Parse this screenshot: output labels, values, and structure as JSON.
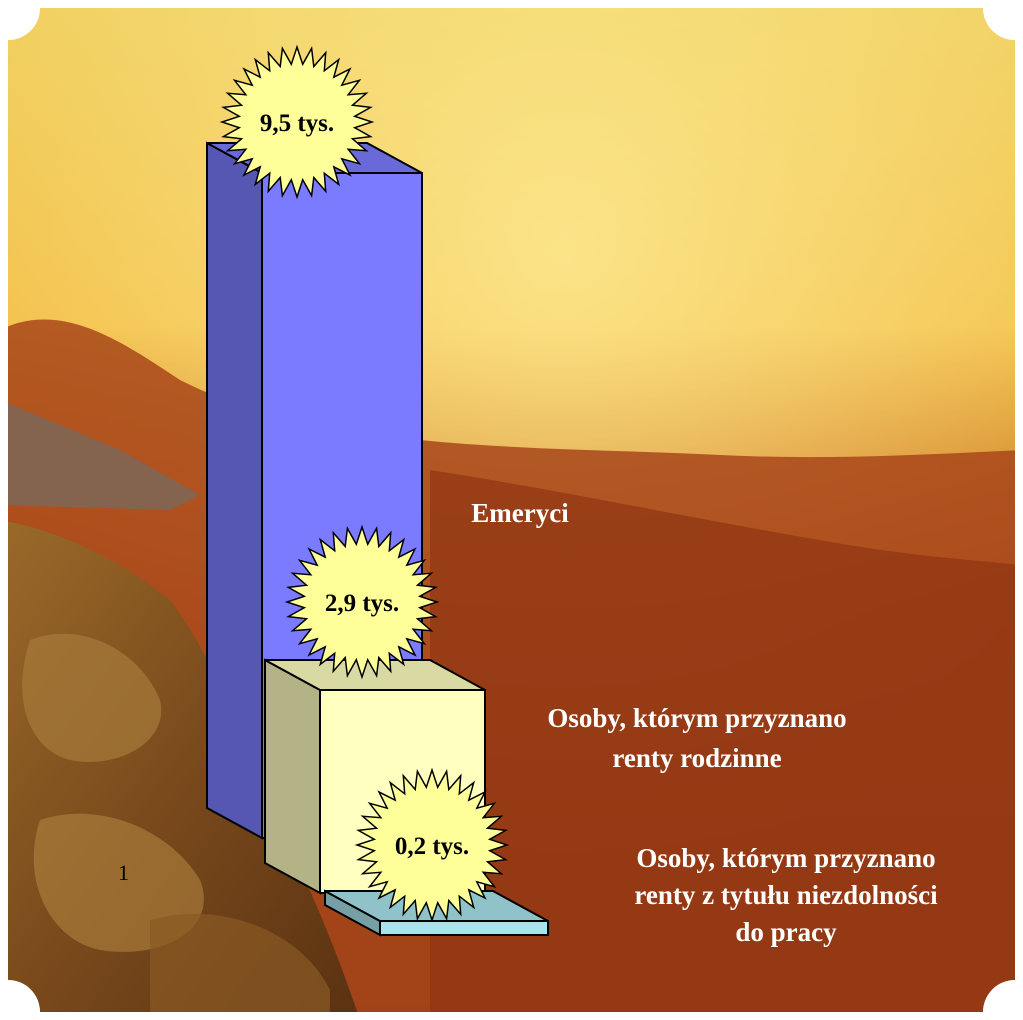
{
  "chart_data": {
    "type": "bar",
    "categories": [
      "Emeryci",
      "Osoby, którym przyznano renty rodzinne",
      "Osoby, którym przyznano renty z tytułu niezdolności do pracy"
    ],
    "values": [
      9.5,
      2.9,
      0.2
    ],
    "value_labels": [
      "9,5 tys.",
      "2,9 tys.",
      "0,2 tys."
    ],
    "category_lines": [
      [
        "Emeryci"
      ],
      [
        "Osoby, którym przyznano",
        "renty rodzinne"
      ],
      [
        "Osoby, którym przyznano",
        "renty z tytułu niezdolności",
        "do pracy"
      ]
    ],
    "x_tick_label": "1",
    "colors": [
      "#7b7bff",
      "#ffffc0",
      "#a8e4ec"
    ],
    "title": "",
    "xlabel": "",
    "ylabel": ""
  }
}
